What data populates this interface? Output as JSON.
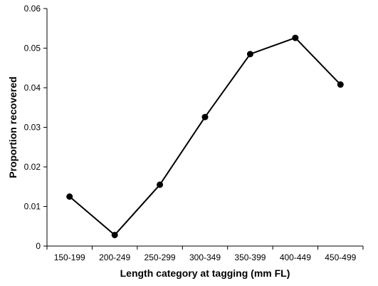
{
  "chart_data": {
    "type": "line",
    "title": "",
    "xlabel": "Length category at tagging (mm FL)",
    "ylabel": "Proportion recovered",
    "categories": [
      "150-199",
      "200-249",
      "250-299",
      "300-349",
      "350-399",
      "400-449",
      "450-499"
    ],
    "series": [
      {
        "values": [
          0.0125,
          0.0028,
          0.0155,
          0.0326,
          0.0485,
          0.0526,
          0.0408
        ],
        "color": "#000000"
      }
    ],
    "ylim": [
      0,
      0.06
    ],
    "yticks": [
      "0",
      "0.01",
      "0.02",
      "0.03",
      "0.04",
      "0.05",
      "0.06"
    ],
    "grid": false,
    "legend": "none"
  }
}
